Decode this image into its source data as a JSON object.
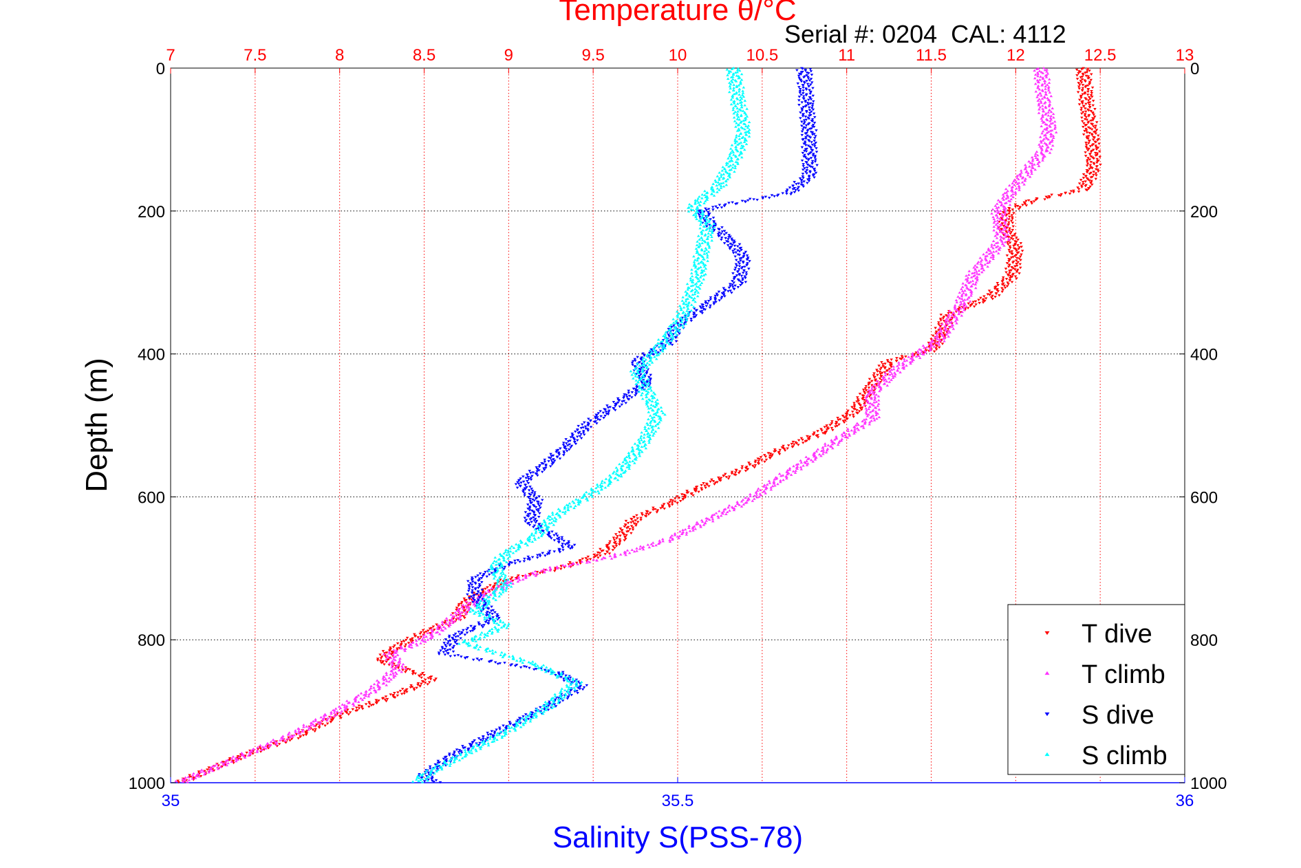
{
  "figure": {
    "serial_label": "Serial #: 0204  CAL: 4112"
  },
  "chart_data": {
    "type": "scatter",
    "title": "Temperature θ/°C",
    "xlabel_top": "Temperature θ/°C",
    "xlabel_bottom": "Salinity S(PSS-78)",
    "ylabel": "Depth (m)",
    "y_reversed": true,
    "ylim": [
      0,
      1000
    ],
    "yticks": [
      0,
      200,
      400,
      600,
      800,
      1000
    ],
    "xlim_temperature": [
      7,
      13
    ],
    "xticks_temperature": [
      7,
      7.5,
      8,
      8.5,
      9,
      9.5,
      10,
      10.5,
      11,
      11.5,
      12,
      12.5,
      13
    ],
    "xtick_labels_temperature": [
      "7",
      "7.5",
      "8",
      "8.5",
      "9",
      "9.5",
      "10",
      "10.5",
      "11",
      "11.5",
      "12",
      "12.5",
      "13"
    ],
    "xlim_salinity": [
      35,
      36
    ],
    "xticks_salinity": [
      35,
      35.5,
      36
    ],
    "xtick_labels_salinity": [
      "35",
      "35.5",
      "36"
    ],
    "grid": true,
    "legend_position": "bottom-right",
    "colors": {
      "temperature_axis": "#ff0000",
      "salinity_axis": "#0000ff"
    },
    "series": [
      {
        "name": "T dive",
        "axis": "temperature",
        "color": "#ff0000",
        "marker": "triangle-down",
        "points": [
          [
            12.4,
            0
          ],
          [
            12.42,
            50
          ],
          [
            12.45,
            100
          ],
          [
            12.46,
            140
          ],
          [
            12.4,
            170
          ],
          [
            12.1,
            185
          ],
          [
            11.95,
            200
          ],
          [
            11.94,
            225
          ],
          [
            12.0,
            250
          ],
          [
            11.98,
            290
          ],
          [
            11.85,
            320
          ],
          [
            11.6,
            345
          ],
          [
            11.55,
            375
          ],
          [
            11.5,
            395
          ],
          [
            11.25,
            410
          ],
          [
            11.15,
            445
          ],
          [
            11.05,
            480
          ],
          [
            10.85,
            510
          ],
          [
            10.6,
            535
          ],
          [
            10.4,
            560
          ],
          [
            10.15,
            585
          ],
          [
            9.95,
            610
          ],
          [
            9.75,
            630
          ],
          [
            9.65,
            660
          ],
          [
            9.55,
            680
          ],
          [
            9.3,
            700
          ],
          [
            9.0,
            715
          ],
          [
            8.75,
            745
          ],
          [
            8.7,
            770
          ],
          [
            8.5,
            790
          ],
          [
            8.3,
            815
          ],
          [
            8.25,
            830
          ],
          [
            8.55,
            855
          ],
          [
            8.3,
            880
          ],
          [
            8.0,
            905
          ],
          [
            7.75,
            935
          ],
          [
            7.45,
            960
          ],
          [
            7.2,
            985
          ],
          [
            7.05,
            1000
          ]
        ]
      },
      {
        "name": "T climb",
        "axis": "temperature",
        "color": "#ff33ff",
        "marker": "triangle-up",
        "points": [
          [
            12.15,
            0
          ],
          [
            12.17,
            50
          ],
          [
            12.2,
            85
          ],
          [
            12.17,
            115
          ],
          [
            12.05,
            150
          ],
          [
            11.95,
            180
          ],
          [
            11.9,
            200
          ],
          [
            11.92,
            240
          ],
          [
            11.75,
            290
          ],
          [
            11.68,
            330
          ],
          [
            11.55,
            380
          ],
          [
            11.3,
            420
          ],
          [
            11.15,
            455
          ],
          [
            11.15,
            490
          ],
          [
            10.95,
            520
          ],
          [
            10.8,
            545
          ],
          [
            10.6,
            575
          ],
          [
            10.45,
            600
          ],
          [
            10.2,
            630
          ],
          [
            9.95,
            660
          ],
          [
            9.6,
            685
          ],
          [
            9.25,
            700
          ],
          [
            9.0,
            720
          ],
          [
            8.8,
            745
          ],
          [
            8.65,
            775
          ],
          [
            8.5,
            800
          ],
          [
            8.3,
            820
          ],
          [
            8.35,
            840
          ],
          [
            8.2,
            870
          ],
          [
            7.95,
            905
          ],
          [
            7.7,
            935
          ],
          [
            7.45,
            960
          ],
          [
            7.2,
            985
          ],
          [
            7.05,
            1000
          ]
        ]
      },
      {
        "name": "S dive",
        "axis": "salinity",
        "color": "#0000ff",
        "marker": "triangle-down",
        "points": [
          [
            35.625,
            0
          ],
          [
            35.627,
            50
          ],
          [
            35.63,
            100
          ],
          [
            35.63,
            150
          ],
          [
            35.61,
            175
          ],
          [
            35.55,
            190
          ],
          [
            35.525,
            200
          ],
          [
            35.53,
            215
          ],
          [
            35.55,
            240
          ],
          [
            35.565,
            265
          ],
          [
            35.56,
            300
          ],
          [
            35.53,
            330
          ],
          [
            35.5,
            360
          ],
          [
            35.49,
            385
          ],
          [
            35.46,
            410
          ],
          [
            35.47,
            440
          ],
          [
            35.44,
            470
          ],
          [
            35.41,
            500
          ],
          [
            35.39,
            530
          ],
          [
            35.37,
            555
          ],
          [
            35.345,
            580
          ],
          [
            35.36,
            605
          ],
          [
            35.355,
            635
          ],
          [
            35.395,
            670
          ],
          [
            35.33,
            695
          ],
          [
            35.3,
            715
          ],
          [
            35.3,
            740
          ],
          [
            35.32,
            770
          ],
          [
            35.28,
            795
          ],
          [
            35.27,
            820
          ],
          [
            35.38,
            845
          ],
          [
            35.405,
            865
          ],
          [
            35.37,
            895
          ],
          [
            35.32,
            930
          ],
          [
            35.28,
            960
          ],
          [
            35.25,
            990
          ],
          [
            35.26,
            1000
          ]
        ]
      },
      {
        "name": "S climb",
        "axis": "salinity",
        "color": "#00ffff",
        "marker": "triangle-up",
        "points": [
          [
            35.555,
            0
          ],
          [
            35.56,
            50
          ],
          [
            35.565,
            90
          ],
          [
            35.555,
            130
          ],
          [
            35.54,
            165
          ],
          [
            35.515,
            195
          ],
          [
            35.53,
            220
          ],
          [
            35.525,
            250
          ],
          [
            35.52,
            290
          ],
          [
            35.51,
            330
          ],
          [
            35.5,
            360
          ],
          [
            35.48,
            395
          ],
          [
            35.46,
            425
          ],
          [
            35.47,
            455
          ],
          [
            35.48,
            485
          ],
          [
            35.47,
            515
          ],
          [
            35.455,
            545
          ],
          [
            35.44,
            570
          ],
          [
            35.41,
            600
          ],
          [
            35.38,
            625
          ],
          [
            35.36,
            655
          ],
          [
            35.33,
            680
          ],
          [
            35.32,
            700
          ],
          [
            35.33,
            725
          ],
          [
            35.3,
            760
          ],
          [
            35.33,
            780
          ],
          [
            35.29,
            805
          ],
          [
            35.36,
            835
          ],
          [
            35.4,
            860
          ],
          [
            35.37,
            895
          ],
          [
            35.33,
            930
          ],
          [
            35.29,
            960
          ],
          [
            35.25,
            990
          ],
          [
            35.245,
            1000
          ]
        ]
      }
    ]
  }
}
